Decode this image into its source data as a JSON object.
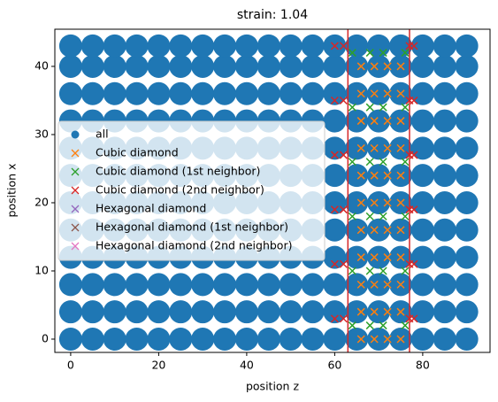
{
  "chart_data": {
    "type": "scatter",
    "title": "strain: 1.04",
    "xlabel": "position z",
    "ylabel": "position x",
    "xlim": [
      -3.6,
      95.3
    ],
    "ylim": [
      -1.95,
      45.45
    ],
    "xticks": [
      0,
      20,
      40,
      60,
      80
    ],
    "yticks": [
      0,
      10,
      20,
      30,
      40
    ],
    "legend": "center left",
    "vlines": [
      63,
      77
    ],
    "vline_color": "#d62728",
    "series": [
      {
        "name": "all",
        "color": "#1f77b4",
        "marker": "o",
        "x": [
          0,
          5,
          10,
          15,
          20,
          25,
          30,
          35,
          40,
          45,
          50,
          55,
          60,
          65,
          70,
          75,
          80,
          85,
          90,
          0,
          5,
          10,
          15,
          20,
          25,
          30,
          35,
          40,
          45,
          50,
          55,
          60,
          65,
          70,
          75,
          80,
          85,
          90,
          0,
          5,
          10,
          15,
          20,
          25,
          30,
          35,
          40,
          45,
          50,
          55,
          60,
          65,
          70,
          75,
          80,
          85,
          90,
          0,
          5,
          10,
          15,
          20,
          25,
          30,
          35,
          40,
          45,
          50,
          55,
          60,
          65,
          70,
          75,
          80,
          85,
          90,
          0,
          5,
          10,
          15,
          20,
          25,
          30,
          35,
          40,
          45,
          50,
          55,
          60,
          65,
          70,
          75,
          80,
          85,
          90,
          0,
          5,
          10,
          15,
          20,
          25,
          30,
          35,
          40,
          45,
          50,
          55,
          60,
          65,
          70,
          75,
          80,
          85,
          90,
          0,
          5,
          10,
          15,
          20,
          25,
          30,
          35,
          40,
          45,
          50,
          55,
          60,
          65,
          70,
          75,
          80,
          85,
          90,
          0,
          5,
          10,
          15,
          20,
          25,
          30,
          35,
          40,
          45,
          50,
          55,
          60,
          65,
          70,
          75,
          80,
          85,
          90,
          0,
          5,
          10,
          15,
          20,
          25,
          30,
          35,
          40,
          45,
          50,
          55,
          60,
          65,
          70,
          75,
          80,
          85,
          90,
          0,
          5,
          10,
          15,
          20,
          25,
          30,
          35,
          40,
          45,
          50,
          55,
          60,
          65,
          70,
          75,
          80,
          85,
          90,
          0,
          5,
          10,
          15,
          20,
          25,
          30,
          35,
          40,
          45,
          50,
          55,
          60,
          65,
          70,
          75,
          80,
          85,
          90,
          0,
          5,
          10,
          15,
          20,
          25,
          30,
          35,
          40,
          45,
          50,
          55,
          60,
          65,
          70,
          75,
          80,
          85,
          90
        ],
        "values": [
          0,
          0,
          0,
          0,
          0,
          0,
          0,
          0,
          0,
          0,
          0,
          0,
          0,
          0,
          0,
          0,
          0,
          0,
          0,
          4,
          4,
          4,
          4,
          4,
          4,
          4,
          4,
          4,
          4,
          4,
          4,
          4,
          4,
          4,
          4,
          4,
          4,
          4,
          8,
          8,
          8,
          8,
          8,
          8,
          8,
          8,
          8,
          8,
          8,
          8,
          8,
          8,
          8,
          8,
          8,
          8,
          8,
          12,
          12,
          12,
          12,
          12,
          12,
          12,
          12,
          12,
          12,
          12,
          12,
          12,
          12,
          12,
          12,
          12,
          12,
          12,
          16,
          16,
          16,
          16,
          16,
          16,
          16,
          16,
          16,
          16,
          16,
          16,
          16,
          16,
          16,
          16,
          16,
          16,
          16,
          20,
          20,
          20,
          20,
          20,
          20,
          20,
          20,
          20,
          20,
          20,
          20,
          20,
          20,
          20,
          20,
          20,
          20,
          20,
          24,
          24,
          24,
          24,
          24,
          24,
          24,
          24,
          24,
          24,
          24,
          24,
          24,
          24,
          24,
          24,
          24,
          24,
          24,
          28,
          28,
          28,
          28,
          28,
          28,
          28,
          28,
          28,
          28,
          28,
          28,
          28,
          28,
          28,
          28,
          28,
          28,
          28,
          32,
          32,
          32,
          32,
          32,
          32,
          32,
          32,
          32,
          32,
          32,
          32,
          32,
          32,
          32,
          32,
          32,
          32,
          32,
          36,
          36,
          36,
          36,
          36,
          36,
          36,
          36,
          36,
          36,
          36,
          36,
          36,
          36,
          36,
          36,
          36,
          36,
          36,
          40,
          40,
          40,
          40,
          40,
          40,
          40,
          40,
          40,
          40,
          40,
          40,
          40,
          40,
          40,
          40,
          40,
          40,
          40,
          43,
          43,
          43,
          43,
          43,
          43,
          43,
          43,
          43,
          43,
          43,
          43,
          43,
          43,
          43,
          43,
          43,
          43,
          43
        ]
      },
      {
        "name": "Cubic diamond",
        "color": "#ff7f0e",
        "marker": "x",
        "x": [
          66,
          69,
          72,
          75,
          66,
          69,
          72,
          75,
          66,
          69,
          72,
          75,
          66,
          69,
          72,
          75,
          66,
          69,
          72,
          75,
          66,
          69,
          72,
          75,
          66,
          69,
          72,
          75,
          66,
          69,
          72,
          75,
          66,
          69,
          72,
          75,
          66,
          69,
          72,
          75,
          66,
          69,
          72,
          75
        ],
        "values": [
          0,
          0,
          0,
          0,
          4,
          4,
          4,
          4,
          8,
          8,
          8,
          8,
          12,
          12,
          12,
          12,
          16,
          16,
          16,
          16,
          20,
          20,
          20,
          20,
          24,
          24,
          24,
          24,
          28,
          28,
          28,
          28,
          32,
          32,
          32,
          32,
          36,
          36,
          36,
          36,
          40,
          40,
          40,
          40
        ]
      },
      {
        "name": "Cubic diamond (1st neighbor)",
        "color": "#2ca02c",
        "marker": "x",
        "x": [
          64,
          68,
          71,
          76,
          64,
          68,
          71,
          76,
          64,
          68,
          71,
          76,
          64,
          68,
          71,
          76,
          64,
          68,
          71,
          76,
          64,
          68,
          71,
          76
        ],
        "values": [
          2,
          2,
          2,
          2,
          10,
          10,
          10,
          10,
          18,
          18,
          18,
          18,
          26,
          26,
          26,
          26,
          34,
          34,
          34,
          34,
          42,
          42,
          42,
          42
        ]
      },
      {
        "name": "Cubic diamond (2nd neighbor)",
        "color": "#d62728",
        "marker": "x",
        "x": [
          60,
          62,
          77,
          78,
          60,
          62,
          77,
          78,
          60,
          62,
          77,
          78,
          60,
          62,
          77,
          78,
          60,
          62,
          77,
          78,
          60,
          62,
          77,
          78
        ],
        "values": [
          3,
          3,
          3,
          3,
          11,
          11,
          11,
          11,
          19,
          19,
          19,
          19,
          27,
          27,
          27,
          27,
          35,
          35,
          35,
          35,
          43,
          43,
          43,
          43
        ]
      },
      {
        "name": "Hexagonal diamond",
        "color": "#9467bd",
        "marker": "x",
        "x": [],
        "values": []
      },
      {
        "name": "Hexagonal diamond (1st neighbor)",
        "color": "#8c564b",
        "marker": "x",
        "x": [],
        "values": []
      },
      {
        "name": "Hexagonal diamond (2nd neighbor)",
        "color": "#e377c2",
        "marker": "x",
        "x": [],
        "values": []
      }
    ]
  }
}
